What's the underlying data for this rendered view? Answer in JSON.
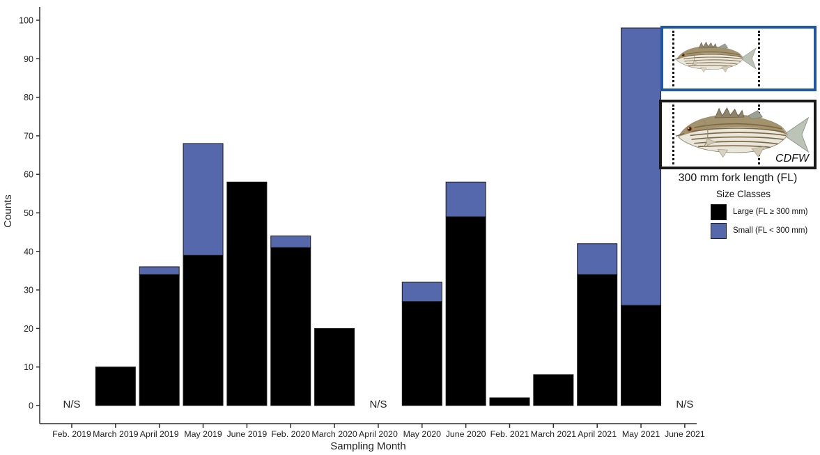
{
  "chart_data": {
    "type": "bar",
    "stacked": true,
    "title": "",
    "xlabel": "Sampling Month",
    "ylabel": "Counts",
    "ylim": [
      0,
      100
    ],
    "yticks": [
      0,
      10,
      20,
      30,
      40,
      50,
      60,
      70,
      80,
      90,
      100
    ],
    "grid": false,
    "legend_position": "right",
    "legend_title": "Size Classes",
    "categories": [
      "Feb. 2019",
      "March 2019",
      "April 2019",
      "May 2019",
      "June 2019",
      "Feb. 2020",
      "March 2020",
      "April 2020",
      "May 2020",
      "June 2020",
      "Feb. 2021",
      "March 2021",
      "April 2021",
      "May 2021",
      "June 2021"
    ],
    "series": [
      {
        "name": "Large (FL ≥ 300 mm)",
        "color": "#000000",
        "values": [
          null,
          10,
          34,
          39,
          58,
          41,
          20,
          null,
          27,
          49,
          2,
          8,
          34,
          26,
          null
        ]
      },
      {
        "name": "Small (FL < 300 mm)",
        "color": "#5668ac",
        "values": [
          null,
          0,
          2,
          29,
          0,
          3,
          0,
          null,
          5,
          9,
          0,
          0,
          8,
          72,
          null
        ]
      }
    ],
    "totals": [
      null,
      10,
      36,
      68,
      58,
      44,
      20,
      null,
      32,
      58,
      2,
      8,
      42,
      98,
      null
    ],
    "no_sample_label": "N/S",
    "no_sample_categories": [
      "Feb. 2019",
      "April 2020",
      "June 2021"
    ],
    "bar_outline_color": "#1a1a1a",
    "axis_color": "#2e2e2e"
  },
  "annotation_panel": {
    "caption": "300 mm fork length (FL)",
    "credit": "CDFW",
    "small_fish_box_border": "#2155a5",
    "large_fish_box_border": "#181818",
    "small_fish": "striped-bass-small",
    "large_fish": "striped-bass-large"
  }
}
